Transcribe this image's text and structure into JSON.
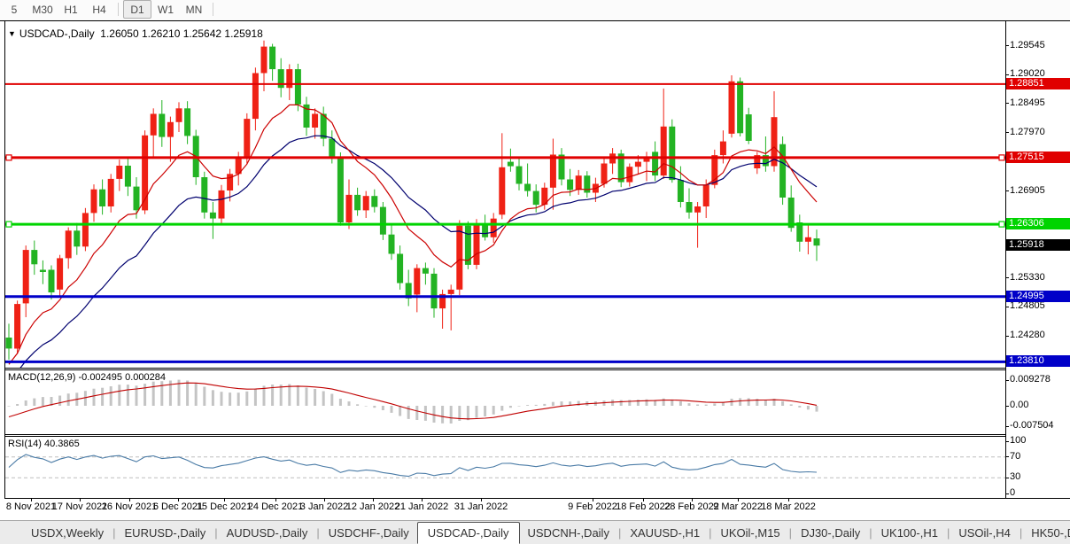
{
  "toolbar": {
    "timeframes": [
      {
        "label": "5"
      },
      {
        "label": "M30"
      },
      {
        "label": "H1"
      },
      {
        "label": "H4"
      },
      {
        "label": "D1"
      },
      {
        "label": "W1"
      },
      {
        "label": "MN"
      }
    ],
    "active": "D1"
  },
  "chart": {
    "dropdown_icon": "▼",
    "title": "USDCAD-,Daily",
    "ohlc": "1.26050 1.26210 1.25642 1.25918"
  },
  "quote": {
    "open": "1.26050",
    "high": "1.26210",
    "low": "1.25642",
    "close": "1.25918"
  },
  "chart_data": {
    "type": "candlestick",
    "symbol": "USDCAD-",
    "timeframe": "Daily",
    "title": "USDCAD-,Daily",
    "colors": {
      "bull": "#ef2115",
      "bear": "#23b323",
      "ma_fast": "#cc0000",
      "ma_slow": "#00006e",
      "hline_red": "#e00000",
      "hline_green": "#00d400",
      "hline_blue": "#0000c8",
      "current_price_bg": "#000000",
      "macd_hist": "#c4c4c4",
      "macd_signal": "#c00000",
      "rsi_line": "#4a7ba6",
      "rsi_dash": "#bdbdbd"
    },
    "y_ticks": [
      {
        "label": "1.29545",
        "price": 1.29545
      },
      {
        "label": "1.29020",
        "price": 1.2902
      },
      {
        "label": "1.28495",
        "price": 1.28495
      },
      {
        "label": "1.27970",
        "price": 1.2797
      },
      {
        "label": "1.26905",
        "price": 1.26905
      },
      {
        "label": "1.25330",
        "price": 1.2533
      },
      {
        "label": "1.24805",
        "price": 1.24805
      },
      {
        "label": "1.24280",
        "price": 1.2428
      }
    ],
    "x_ticks": [
      {
        "label": "8 Nov 2021",
        "x": 29
      },
      {
        "label": "17 Nov 2021",
        "x": 84
      },
      {
        "label": "26 Nov 2021",
        "x": 140
      },
      {
        "label": "6 Dec 2021",
        "x": 195
      },
      {
        "label": "15 Dec 2021",
        "x": 247
      },
      {
        "label": "24 Dec 2021",
        "x": 305
      },
      {
        "label": "3 Jan 2022",
        "x": 360
      },
      {
        "label": "12 Jan 2022",
        "x": 415
      },
      {
        "label": "21 Jan 2022",
        "x": 470
      },
      {
        "label": "31 Jan 2022",
        "x": 537
      },
      {
        "label": "9 Feb 2022",
        "x": 663
      },
      {
        "label": "18 Feb 2022",
        "x": 720
      },
      {
        "label": "28 Feb 2022",
        "x": 775
      },
      {
        "label": "9 Mar 2022",
        "x": 827
      },
      {
        "label": "18 Mar 2022",
        "x": 884
      }
    ],
    "hlines": [
      {
        "name": "resistance-upper",
        "label": "1.28851",
        "price": 1.28851,
        "color": "#e00000",
        "width": 2,
        "handles": false
      },
      {
        "name": "resistance-mid",
        "label": "1.27515",
        "price": 1.27515,
        "color": "#e00000",
        "width": 3,
        "handles": true
      },
      {
        "name": "support-green",
        "label": "1.26306",
        "price": 1.26306,
        "color": "#00d400",
        "width": 3,
        "handles": true
      },
      {
        "name": "support-blue",
        "label": "1.24995",
        "price": 1.24995,
        "color": "#0000c8",
        "width": 3,
        "handles": false
      },
      {
        "name": "support-lower",
        "label": "1.23810",
        "price": 1.2381,
        "color": "#0000c8",
        "width": 3,
        "handles": false
      }
    ],
    "current_price": {
      "label": "1.25918",
      "price": 1.25918
    },
    "overlays": [
      {
        "name": "ma-fast",
        "period": 10,
        "color": "#cc0000"
      },
      {
        "name": "ma-slow",
        "period": 21,
        "color": "#00006e"
      }
    ],
    "candles": [
      [
        1.2425,
        1.245,
        1.2385,
        1.2405
      ],
      [
        1.2405,
        1.2492,
        1.2395,
        1.2486
      ],
      [
        1.2487,
        1.2592,
        1.2462,
        1.2584
      ],
      [
        1.2584,
        1.2601,
        1.2539,
        1.2558
      ],
      [
        1.2548,
        1.2565,
        1.2522,
        1.2544
      ],
      [
        1.2548,
        1.2556,
        1.2494,
        1.2507
      ],
      [
        1.2512,
        1.2575,
        1.25,
        1.2569
      ],
      [
        1.2569,
        1.2625,
        1.255,
        1.2619
      ],
      [
        1.2619,
        1.2633,
        1.2575,
        1.259
      ],
      [
        1.259,
        1.266,
        1.2582,
        1.2651
      ],
      [
        1.2651,
        1.2703,
        1.2635,
        1.2694
      ],
      [
        1.2694,
        1.2712,
        1.2648,
        1.2663
      ],
      [
        1.2663,
        1.2722,
        1.2652,
        1.2713
      ],
      [
        1.2713,
        1.2748,
        1.2691,
        1.2737
      ],
      [
        1.2737,
        1.2752,
        1.2682,
        1.2699
      ],
      [
        1.2699,
        1.2716,
        1.2641,
        1.2656
      ],
      [
        1.2656,
        1.2801,
        1.2649,
        1.2792
      ],
      [
        1.2792,
        1.2841,
        1.2752,
        1.2831
      ],
      [
        1.2831,
        1.2856,
        1.2771,
        1.2789
      ],
      [
        1.2789,
        1.2826,
        1.2744,
        1.2816
      ],
      [
        1.2816,
        1.2852,
        1.2798,
        1.2841
      ],
      [
        1.2841,
        1.2854,
        1.2776,
        1.2791
      ],
      [
        1.2791,
        1.2802,
        1.2702,
        1.2716
      ],
      [
        1.2716,
        1.2726,
        1.2641,
        1.2652
      ],
      [
        1.2652,
        1.2671,
        1.2604,
        1.2641
      ],
      [
        1.2641,
        1.2702,
        1.2631,
        1.2692
      ],
      [
        1.2692,
        1.2731,
        1.2672,
        1.2722
      ],
      [
        1.2722,
        1.2762,
        1.2701,
        1.2751
      ],
      [
        1.2751,
        1.2832,
        1.2741,
        1.2822
      ],
      [
        1.2822,
        1.2915,
        1.2801,
        1.2905
      ],
      [
        1.2905,
        1.2964,
        1.2872,
        1.2953
      ],
      [
        1.2953,
        1.2958,
        1.2891,
        1.2912
      ],
      [
        1.2912,
        1.2932,
        1.2861,
        1.2878
      ],
      [
        1.2878,
        1.2921,
        1.2856,
        1.2912
      ],
      [
        1.2912,
        1.2922,
        1.2836,
        1.2848
      ],
      [
        1.2848,
        1.2862,
        1.2791,
        1.2806
      ],
      [
        1.2806,
        1.2841,
        1.2786,
        1.2831
      ],
      [
        1.2831,
        1.2844,
        1.2772,
        1.2786
      ],
      [
        1.2786,
        1.2801,
        1.2741,
        1.2753
      ],
      [
        1.2753,
        1.2761,
        1.2628,
        1.2634
      ],
      [
        1.2634,
        1.2712,
        1.2622,
        1.2684
      ],
      [
        1.2684,
        1.2697,
        1.2646,
        1.2656
      ],
      [
        1.2656,
        1.2691,
        1.2642,
        1.2682
      ],
      [
        1.2682,
        1.2694,
        1.2652,
        1.2662
      ],
      [
        1.2662,
        1.2671,
        1.2602,
        1.2612
      ],
      [
        1.2612,
        1.2631,
        1.2566,
        1.2577
      ],
      [
        1.2577,
        1.2592,
        1.2512,
        1.2524
      ],
      [
        1.2524,
        1.2548,
        1.2482,
        1.2496
      ],
      [
        1.2503,
        1.2558,
        1.2471,
        1.2551
      ],
      [
        1.2551,
        1.2561,
        1.2521,
        1.2541
      ],
      [
        1.2541,
        1.2551,
        1.2461,
        1.2478
      ],
      [
        1.2478,
        1.2512,
        1.2441,
        1.2504
      ],
      [
        1.2504,
        1.2521,
        1.2438,
        1.2512
      ],
      [
        1.2512,
        1.2638,
        1.2502,
        1.2628
      ],
      [
        1.2628,
        1.2636,
        1.2549,
        1.2557
      ],
      [
        1.2557,
        1.264,
        1.2549,
        1.2632
      ],
      [
        1.2632,
        1.2648,
        1.2601,
        1.2607
      ],
      [
        1.2607,
        1.2651,
        1.2597,
        1.2641
      ],
      [
        1.2648,
        1.2796,
        1.264,
        1.2734
      ],
      [
        1.2744,
        1.2768,
        1.2726,
        1.2736
      ],
      [
        1.2736,
        1.2752,
        1.2692,
        1.2704
      ],
      [
        1.2704,
        1.2741,
        1.2681,
        1.2691
      ],
      [
        1.2691,
        1.2703,
        1.2652,
        1.2666
      ],
      [
        1.2666,
        1.2706,
        1.2657,
        1.2697
      ],
      [
        1.2697,
        1.2786,
        1.2657,
        1.2757
      ],
      [
        1.2757,
        1.2769,
        1.2701,
        1.2712
      ],
      [
        1.2712,
        1.2731,
        1.2682,
        1.2693
      ],
      [
        1.2693,
        1.2729,
        1.2684,
        1.2719
      ],
      [
        1.2719,
        1.2727,
        1.2679,
        1.2688
      ],
      [
        1.2688,
        1.2715,
        1.2671,
        1.2704
      ],
      [
        1.2704,
        1.2752,
        1.2697,
        1.2741
      ],
      [
        1.2741,
        1.2769,
        1.2722,
        1.2759
      ],
      [
        1.2759,
        1.2766,
        1.2698,
        1.2707
      ],
      [
        1.2707,
        1.2741,
        1.2699,
        1.2735
      ],
      [
        1.2735,
        1.2756,
        1.2721,
        1.2744
      ],
      [
        1.2744,
        1.2762,
        1.2709,
        1.2752
      ],
      [
        1.2762,
        1.2781,
        1.2709,
        1.2719
      ],
      [
        1.2719,
        1.2877,
        1.2713,
        1.2808
      ],
      [
        1.2808,
        1.2821,
        1.2706,
        1.2711
      ],
      [
        1.2711,
        1.2736,
        1.2661,
        1.2671
      ],
      [
        1.2671,
        1.2696,
        1.2641,
        1.2652
      ],
      [
        1.2652,
        1.2671,
        1.2588,
        1.2663
      ],
      [
        1.2663,
        1.2712,
        1.2642,
        1.2702
      ],
      [
        1.2702,
        1.2766,
        1.2696,
        1.2756
      ],
      [
        1.2756,
        1.2801,
        1.2741,
        1.2781
      ],
      [
        1.2795,
        1.2901,
        1.2788,
        1.289
      ],
      [
        1.289,
        1.2897,
        1.279,
        1.2796
      ],
      [
        1.283,
        1.2842,
        1.2776,
        1.2782
      ],
      [
        1.2732,
        1.2762,
        1.2722,
        1.2756
      ],
      [
        1.2756,
        1.279,
        1.2726,
        1.2736
      ],
      [
        1.2736,
        1.2872,
        1.2726,
        1.2825
      ],
      [
        1.2776,
        1.279,
        1.2666,
        1.2679
      ],
      [
        1.2679,
        1.2701,
        1.2617,
        1.2624
      ],
      [
        1.2634,
        1.2648,
        1.2581,
        1.2599
      ],
      [
        1.2599,
        1.2631,
        1.2576,
        1.2607
      ],
      [
        1.2605,
        1.2621,
        1.2564,
        1.2592
      ]
    ],
    "indicators": {
      "macd": {
        "label": "MACD(12,26,9)",
        "values_text": "-0.002495 0.000284",
        "macd_value": -0.002495,
        "signal_value": 0.000284,
        "axis": [
          {
            "label": "0.009278",
            "value": 0.009278
          },
          {
            "label": "0.00",
            "value": 0
          },
          {
            "label": "-0.007504",
            "value": -0.007504
          }
        ]
      },
      "rsi": {
        "label": "RSI(14)",
        "value_text": "40.3865",
        "value": 40.3865,
        "levels": [
          100,
          70,
          30,
          0
        ],
        "dashed_levels": [
          70,
          30
        ]
      }
    }
  },
  "tabs": {
    "items": [
      "USDX,Weekly",
      "EURUSD-,Daily",
      "AUDUSD-,Daily",
      "USDCHF-,Daily",
      "USDCAD-,Daily",
      "USDCNH-,Daily",
      "XAUUSD-,H1",
      "UKOil-,M15",
      "DJ30-,Daily",
      "UK100-,H1",
      "USOil-,H4",
      "HK50-,Daily"
    ],
    "active": "USDCAD-,Daily",
    "scroll_left": "◄",
    "scroll_right": "►"
  }
}
